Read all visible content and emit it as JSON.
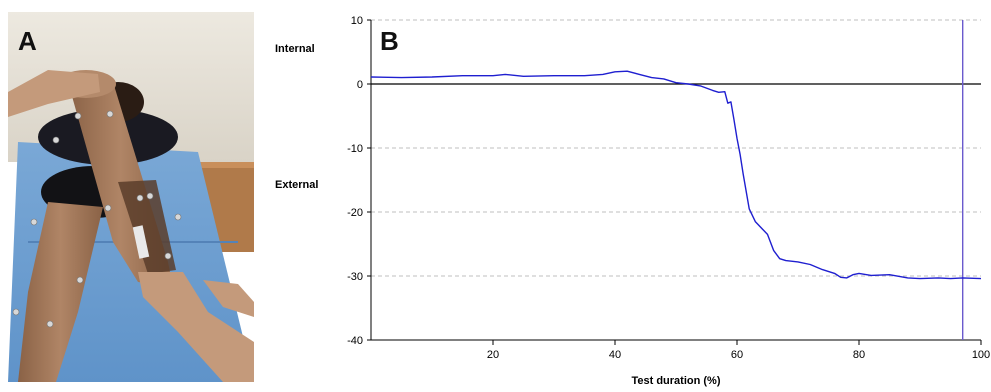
{
  "panels": {
    "a": {
      "letter": "A"
    },
    "b": {
      "letter": "B"
    }
  },
  "colors": {
    "series": "#1f1fd0",
    "marker_line": "#6a5acd",
    "grid": "#aaaaaa",
    "background_wall": "#e8e4da",
    "bench": "#6f9fd0",
    "skin": "#a77d5e"
  },
  "chart_data": {
    "type": "line",
    "title": "",
    "xlabel": "Test duration (%)",
    "ylabel": "",
    "side_labels": {
      "upper": "Internal",
      "lower": "External"
    },
    "xlim": [
      0,
      100
    ],
    "ylim": [
      -40,
      10
    ],
    "xticks": [
      20,
      40,
      60,
      80,
      100
    ],
    "yticks": [
      10,
      0,
      -10,
      -20,
      -30,
      -40
    ],
    "grid": "horizontal-dashed",
    "zero_line": true,
    "vertical_marker_x": 97,
    "series": [
      {
        "x": [
          0,
          5,
          10,
          15,
          20,
          22,
          25,
          30,
          35,
          38,
          40,
          42,
          44,
          46,
          48,
          50,
          52,
          54,
          56,
          57,
          58,
          58.5,
          59,
          59.5,
          60,
          60.5,
          61,
          62,
          63,
          64,
          65,
          66,
          67,
          68,
          70,
          72,
          74,
          76,
          77,
          78,
          79,
          80,
          82,
          85,
          88,
          90,
          93,
          95,
          97,
          100
        ],
        "y": [
          1.1,
          1.0,
          1.1,
          1.3,
          1.3,
          1.5,
          1.2,
          1.3,
          1.3,
          1.5,
          1.9,
          2.0,
          1.5,
          1.0,
          0.8,
          0.2,
          0.0,
          -0.3,
          -1.0,
          -1.3,
          -1.2,
          -3.0,
          -2.8,
          -5.5,
          -8.5,
          -11.0,
          -14.0,
          -19.5,
          -21.5,
          -22.5,
          -23.5,
          -26.0,
          -27.3,
          -27.6,
          -27.8,
          -28.2,
          -29.0,
          -29.6,
          -30.2,
          -30.3,
          -29.8,
          -29.6,
          -29.9,
          -29.8,
          -30.3,
          -30.4,
          -30.3,
          -30.4,
          -30.3,
          -30.4
        ]
      }
    ]
  }
}
